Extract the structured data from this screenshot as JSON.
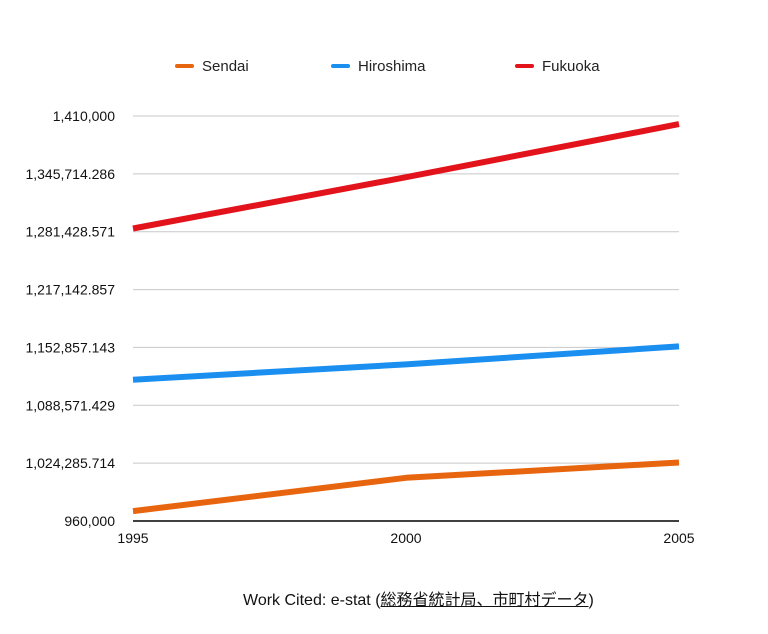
{
  "chart_data": {
    "type": "line",
    "x": [
      1995,
      2000,
      2005
    ],
    "x_tick_labels": [
      "1995",
      "2000",
      "2005"
    ],
    "y_tick_labels": [
      "960,000",
      "1,024,285.714",
      "1,088,571.429",
      "1,152,857.143",
      "1,217,142.857",
      "1,281,428.571",
      "1,345,714.286",
      "1,410,000"
    ],
    "y_ticks": [
      960000,
      1024285.714,
      1088571.429,
      1152857.143,
      1217142.857,
      1281428.571,
      1345714.286,
      1410000
    ],
    "ylim": [
      960000,
      1410000
    ],
    "xlim": [
      1995,
      2005
    ],
    "grid": true,
    "legend_position": "top",
    "series": [
      {
        "name": "Sendai",
        "color": "#e8650f",
        "values": [
          971000,
          1008000,
          1025000
        ]
      },
      {
        "name": "Hiroshima",
        "color": "#1a8ff0",
        "values": [
          1117000,
          1134000,
          1154000
        ]
      },
      {
        "name": "Fukuoka",
        "color": "#e3131b",
        "values": [
          1285000,
          1342000,
          1401000
        ]
      }
    ]
  },
  "caption": {
    "prefix": "Work Cited: e-stat (",
    "link_text": "総務省統計局、市町村データ",
    "suffix": ")"
  }
}
